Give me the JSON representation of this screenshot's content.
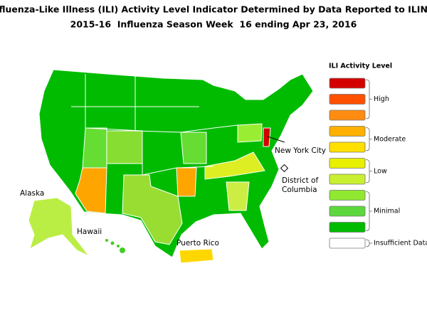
{
  "header": {
    "title": "Influenza-Like Illness (ILI) Activity Level Indicator Determined by Data Reported to ILINet",
    "subtitle": "2015-16  Influenza Season Week  16 ending Apr 23, 2016"
  },
  "map_labels": {
    "alaska": "Alaska",
    "hawaii": "Hawaii",
    "puerto_rico": "Puerto Rico",
    "new_york_city": "New York City",
    "district_of_columbia": [
      "District of",
      "Columbia"
    ]
  },
  "legend": {
    "title": "ILI Activity Level",
    "levels": [
      {
        "label": "High",
        "colors": [
          "#d40000",
          "#ff5000",
          "#ff8c10"
        ]
      },
      {
        "label": "Moderate",
        "colors": [
          "#ffb000",
          "#ffe000"
        ]
      },
      {
        "label": "Low",
        "colors": [
          "#e8f000",
          "#c8f030"
        ]
      },
      {
        "label": "Minimal",
        "colors": [
          "#90e830",
          "#5cd83c",
          "#00bb00"
        ]
      },
      {
        "label": "Insufficient Data",
        "colors": [
          "#ffffff"
        ]
      }
    ]
  }
}
